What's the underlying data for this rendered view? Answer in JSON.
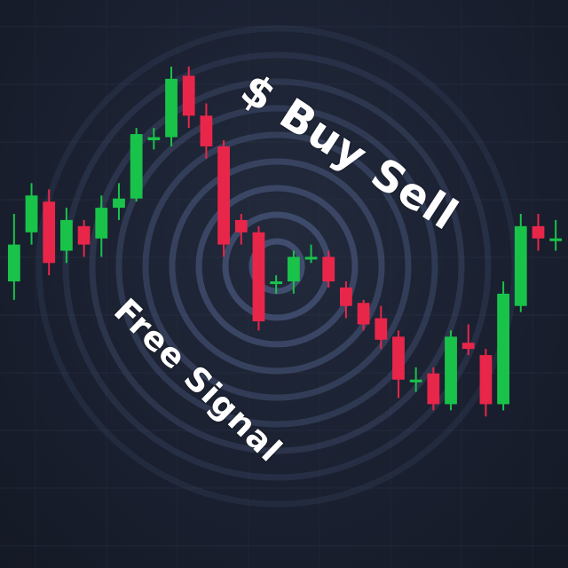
{
  "overlay": {
    "headline": "$ Buy Sell",
    "subline": "Free Signal"
  },
  "colors": {
    "background": "#1b2130",
    "bullish": "#19c34a",
    "bearish": "#e8264a",
    "rings": "#4b5a80",
    "grid": "#2a3246"
  },
  "chart_data": {
    "type": "candlestick",
    "title": "",
    "xlabel": "",
    "ylabel": "",
    "ylim": [
      0,
      100
    ],
    "grid": true,
    "legend": "none",
    "candles": [
      {
        "open": 50,
        "close": 62,
        "high": 72,
        "low": 44
      },
      {
        "open": 66,
        "close": 78,
        "high": 82,
        "low": 62
      },
      {
        "open": 76,
        "close": 56,
        "high": 80,
        "low": 52
      },
      {
        "open": 60,
        "close": 70,
        "high": 74,
        "low": 56
      },
      {
        "open": 68,
        "close": 62,
        "high": 70,
        "low": 58
      },
      {
        "open": 64,
        "close": 74,
        "high": 78,
        "low": 58
      },
      {
        "open": 74,
        "close": 77,
        "high": 82,
        "low": 70
      },
      {
        "open": 77,
        "close": 98,
        "high": 100,
        "low": 76
      },
      {
        "open": 96,
        "close": 97,
        "high": 100,
        "low": 93
      },
      {
        "open": 97,
        "close": 116,
        "high": 120,
        "low": 94
      },
      {
        "open": 117,
        "close": 104,
        "high": 120,
        "low": 100
      },
      {
        "open": 104,
        "close": 94,
        "high": 108,
        "low": 90
      },
      {
        "open": 94,
        "close": 62,
        "high": 96,
        "low": 58
      },
      {
        "open": 70,
        "close": 66,
        "high": 72,
        "low": 62
      },
      {
        "open": 66,
        "close": 37,
        "high": 68,
        "low": 34
      },
      {
        "open": 50,
        "close": 50,
        "high": 52,
        "low": 46
      },
      {
        "open": 50,
        "close": 58,
        "high": 60,
        "low": 46
      },
      {
        "open": 58,
        "close": 58,
        "high": 62,
        "low": 56
      },
      {
        "open": 58,
        "close": 50,
        "high": 60,
        "low": 48
      },
      {
        "open": 48,
        "close": 42,
        "high": 50,
        "low": 38
      },
      {
        "open": 43,
        "close": 36,
        "high": 44,
        "low": 34
      },
      {
        "open": 38,
        "close": 31,
        "high": 42,
        "low": 28
      },
      {
        "open": 32,
        "close": 18,
        "high": 34,
        "low": 12
      },
      {
        "open": 18,
        "close": 18,
        "high": 22,
        "low": 14
      },
      {
        "open": 20,
        "close": 10,
        "high": 22,
        "low": 8
      },
      {
        "open": 10,
        "close": 32,
        "high": 34,
        "low": 8
      },
      {
        "open": 30,
        "close": 28,
        "high": 36,
        "low": 26
      },
      {
        "open": 26,
        "close": 10,
        "high": 28,
        "low": 6
      },
      {
        "open": 10,
        "close": 46,
        "high": 50,
        "low": 8
      },
      {
        "open": 42,
        "close": 68,
        "high": 72,
        "low": 40
      },
      {
        "open": 68,
        "close": 64,
        "high": 72,
        "low": 60
      },
      {
        "open": 64,
        "close": 64,
        "high": 70,
        "low": 60
      }
    ]
  }
}
